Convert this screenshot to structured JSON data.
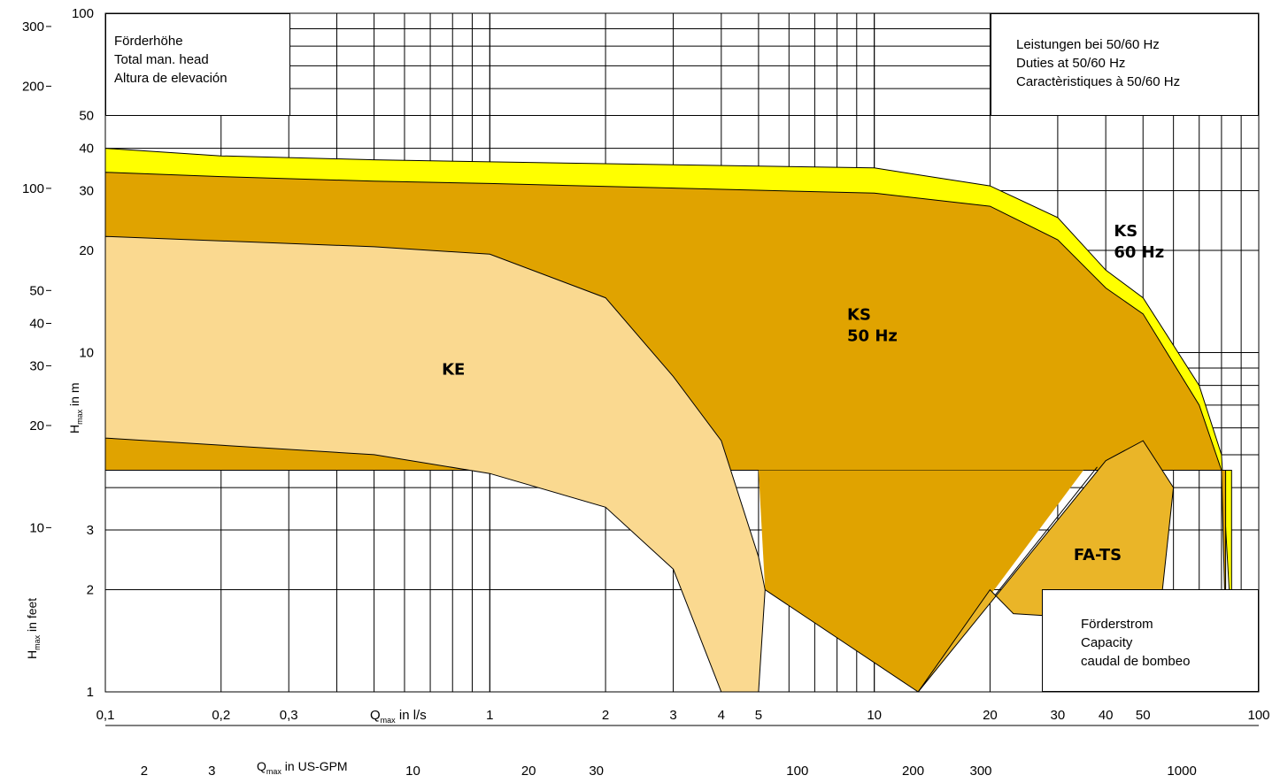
{
  "chart_data": {
    "type": "area",
    "x_scale": "log",
    "y_scale": "log",
    "xlim": [
      0.1,
      100
    ],
    "ylim": [
      1,
      100
    ],
    "x_unit": "l/s",
    "y_unit": "m",
    "annotation_top_left": [
      "Förderhöhe",
      "Total man. head",
      "Altura de elevación"
    ],
    "annotation_top_right": [
      "Leistungen bei 50/60 Hz",
      "Duties at 50/60 Hz",
      "Caractèristiques à 50/60 Hz"
    ],
    "annotation_bottom_right": [
      "Förderstrom",
      "Capacity",
      "caudal de bombeo"
    ],
    "x_axis_label": "Q<sub>max</sub> in l/s",
    "x2_axis_label": "Q<sub>max</sub> in US-GPM",
    "y_axis_label": "H<sub>max</sub> in m",
    "y2_axis_label": "H<sub>max</sub> in feet",
    "x_ticks": [
      "0,1",
      "0,2",
      "0,3",
      "1",
      "2",
      "3",
      "4",
      "5",
      "10",
      "20",
      "30",
      "40",
      "50",
      "100"
    ],
    "x2_ticks": [
      "2",
      "3",
      "10",
      "20",
      "30",
      "100",
      "200",
      "300",
      "1000"
    ],
    "y_ticks_m": [
      "1",
      "2",
      "3",
      "10",
      "20",
      "30",
      "40",
      "50",
      "100"
    ],
    "y_ticks_ft": [
      "10",
      "20",
      "30",
      "40",
      "50",
      "100",
      "200",
      "300"
    ],
    "series": [
      {
        "name": "KS 60 Hz",
        "color": "#ffff00",
        "points": [
          [
            0.1,
            40
          ],
          [
            0.2,
            38
          ],
          [
            0.5,
            37
          ],
          [
            1,
            36.5
          ],
          [
            10,
            35
          ],
          [
            20,
            31
          ],
          [
            30,
            25
          ],
          [
            40,
            17.5
          ],
          [
            50,
            14.5
          ],
          [
            70,
            8
          ],
          [
            80,
            5
          ],
          [
            85,
            1.5
          ]
        ]
      },
      {
        "name": "KS 50 Hz",
        "color": "#e0a300",
        "points": [
          [
            0.1,
            34
          ],
          [
            0.2,
            33
          ],
          [
            0.5,
            32
          ],
          [
            1,
            31.5
          ],
          [
            10,
            29.5
          ],
          [
            20,
            27
          ],
          [
            30,
            21.5
          ],
          [
            40,
            15.5
          ],
          [
            50,
            13
          ],
          [
            70,
            7
          ],
          [
            80,
            4.5
          ],
          [
            82,
            1.5
          ]
        ]
      },
      {
        "name": "KE",
        "color": "#fad990",
        "upper": [
          [
            0.1,
            22
          ],
          [
            0.5,
            20.5
          ],
          [
            1,
            19.5
          ],
          [
            2,
            14.5
          ],
          [
            3,
            8.5
          ],
          [
            4,
            5.5
          ],
          [
            5,
            2.5
          ],
          [
            5.2,
            2
          ]
        ],
        "lower": [
          [
            0.1,
            5.6
          ],
          [
            0.5,
            5
          ],
          [
            1,
            4.4
          ],
          [
            2,
            3.5
          ],
          [
            3,
            2.3
          ],
          [
            4,
            1
          ],
          [
            5,
            1
          ]
        ]
      },
      {
        "name": "FA-TS",
        "color": "#eab528",
        "points": [
          [
            13,
            1
          ],
          [
            40,
            4.8
          ],
          [
            50,
            5.5
          ],
          [
            60,
            4
          ],
          [
            55,
            1.6
          ],
          [
            23,
            1.7
          ],
          [
            20,
            2
          ]
        ]
      }
    ]
  }
}
